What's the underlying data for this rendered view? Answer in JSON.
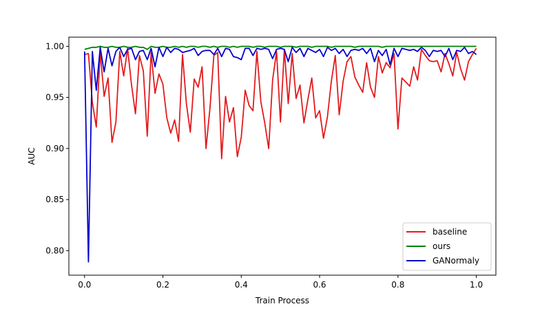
{
  "chart_data": {
    "type": "line",
    "title": "",
    "xlabel": "Train Process",
    "ylabel": "AUC",
    "xlim": [
      -0.04,
      1.05
    ],
    "ylim": [
      0.776,
      1.009
    ],
    "xticks": [
      0.0,
      0.2,
      0.4,
      0.6,
      0.8,
      1.0
    ],
    "xtick_labels": [
      "0.0",
      "0.2",
      "0.4",
      "0.6",
      "0.8",
      "1.0"
    ],
    "yticks": [
      0.8,
      0.85,
      0.9,
      0.95,
      1.0
    ],
    "ytick_labels": [
      "0.80",
      "0.85",
      "0.90",
      "0.95",
      "1.00"
    ],
    "grid": false,
    "legend_position": "lower-right",
    "series": [
      {
        "name": "baseline",
        "color": "#e31a1c",
        "x": [
          0.0,
          0.01,
          0.02,
          0.03,
          0.04,
          0.05,
          0.06,
          0.07,
          0.08,
          0.09,
          0.1,
          0.11,
          0.12,
          0.13,
          0.14,
          0.15,
          0.16,
          0.17,
          0.18,
          0.19,
          0.2,
          0.21,
          0.22,
          0.23,
          0.24,
          0.25,
          0.26,
          0.27,
          0.28,
          0.29,
          0.3,
          0.31,
          0.32,
          0.33,
          0.34,
          0.35,
          0.36,
          0.37,
          0.38,
          0.39,
          0.4,
          0.41,
          0.42,
          0.43,
          0.44,
          0.45,
          0.46,
          0.47,
          0.48,
          0.49,
          0.5,
          0.51,
          0.52,
          0.53,
          0.54,
          0.55,
          0.56,
          0.57,
          0.58,
          0.59,
          0.6,
          0.61,
          0.62,
          0.63,
          0.64,
          0.65,
          0.66,
          0.67,
          0.68,
          0.69,
          0.7,
          0.71,
          0.72,
          0.73,
          0.74,
          0.75,
          0.76,
          0.77,
          0.78,
          0.79,
          0.8,
          0.81,
          0.82,
          0.83,
          0.84,
          0.85,
          0.86,
          0.87,
          0.88,
          0.89,
          0.9,
          0.91,
          0.92,
          0.93,
          0.94,
          0.95,
          0.96,
          0.97,
          0.98,
          0.99,
          1.0
        ],
        "y": [
          0.992,
          0.993,
          0.945,
          0.921,
          0.994,
          0.951,
          0.969,
          0.906,
          0.926,
          0.995,
          0.971,
          0.998,
          0.962,
          0.934,
          0.991,
          0.976,
          0.912,
          0.994,
          0.954,
          0.973,
          0.963,
          0.93,
          0.915,
          0.928,
          0.907,
          0.992,
          0.944,
          0.916,
          0.968,
          0.96,
          0.98,
          0.9,
          0.939,
          0.991,
          0.994,
          0.89,
          0.951,
          0.926,
          0.94,
          0.892,
          0.911,
          0.957,
          0.942,
          0.937,
          0.995,
          0.946,
          0.925,
          0.9,
          0.967,
          0.995,
          0.926,
          0.997,
          0.944,
          0.993,
          0.949,
          0.962,
          0.925,
          0.948,
          0.969,
          0.93,
          0.937,
          0.91,
          0.931,
          0.966,
          0.991,
          0.933,
          0.966,
          0.985,
          0.99,
          0.97,
          0.962,
          0.955,
          0.984,
          0.96,
          0.95,
          0.99,
          0.974,
          0.984,
          0.979,
          0.993,
          0.919,
          0.969,
          0.965,
          0.961,
          0.98,
          0.967,
          0.997,
          0.991,
          0.986,
          0.985,
          0.986,
          0.975,
          0.993,
          0.983,
          0.971,
          0.994,
          0.978,
          0.967,
          0.985,
          0.992,
          0.998
        ]
      },
      {
        "name": "ours",
        "color": "#008000",
        "x": [
          0.0,
          0.01,
          0.02,
          0.03,
          0.04,
          0.05,
          0.06,
          0.07,
          0.08,
          0.09,
          0.1,
          0.11,
          0.12,
          0.13,
          0.14,
          0.15,
          0.16,
          0.17,
          0.18,
          0.19,
          0.2,
          0.21,
          0.22,
          0.23,
          0.24,
          0.25,
          0.26,
          0.27,
          0.28,
          0.29,
          0.3,
          0.31,
          0.32,
          0.33,
          0.34,
          0.35,
          0.36,
          0.37,
          0.38,
          0.39,
          0.4,
          0.41,
          0.42,
          0.43,
          0.44,
          0.45,
          0.46,
          0.47,
          0.48,
          0.49,
          0.5,
          0.51,
          0.52,
          0.53,
          0.54,
          0.55,
          0.56,
          0.57,
          0.58,
          0.59,
          0.6,
          0.61,
          0.62,
          0.63,
          0.64,
          0.65,
          0.66,
          0.67,
          0.68,
          0.69,
          0.7,
          0.71,
          0.72,
          0.73,
          0.74,
          0.75,
          0.76,
          0.77,
          0.78,
          0.79,
          0.8,
          0.81,
          0.82,
          0.83,
          0.84,
          0.85,
          0.86,
          0.87,
          0.88,
          0.89,
          0.9,
          0.91,
          0.92,
          0.93,
          0.94,
          0.95,
          0.96,
          0.97,
          0.98,
          0.99,
          1.0
        ],
        "y": [
          0.997,
          0.998,
          0.999,
          0.999,
          1.0,
          0.999,
          0.999,
          1.0,
          0.999,
          0.999,
          1.0,
          0.999,
          0.999,
          1.0,
          0.999,
          0.999,
          0.997,
          1.0,
          0.999,
          0.999,
          1.0,
          0.999,
          0.999,
          1.0,
          0.999,
          1.0,
          0.999,
          1.0,
          1.0,
          0.999,
          1.0,
          1.0,
          0.999,
          1.0,
          0.999,
          1.0,
          1.0,
          0.999,
          1.0,
          0.999,
          1.0,
          1.0,
          1.0,
          0.999,
          1.0,
          1.0,
          0.999,
          1.0,
          1.0,
          1.0,
          0.999,
          1.0,
          1.0,
          1.0,
          0.999,
          1.0,
          1.0,
          1.0,
          0.999,
          1.0,
          1.0,
          1.0,
          1.0,
          0.999,
          1.0,
          1.0,
          1.0,
          1.0,
          1.0,
          0.999,
          1.0,
          1.0,
          1.0,
          1.0,
          1.0,
          1.0,
          0.999,
          1.0,
          1.0,
          1.0,
          1.0,
          1.0,
          1.0,
          1.0,
          1.0,
          1.0,
          1.0,
          1.0,
          1.0,
          1.0,
          1.0,
          1.0,
          1.0,
          1.0,
          1.0,
          1.0,
          1.0,
          1.0,
          1.0,
          1.0,
          1.0
        ]
      },
      {
        "name": "GANormaly",
        "color": "#0000cd",
        "x": [
          0.0,
          0.01,
          0.02,
          0.03,
          0.04,
          0.05,
          0.06,
          0.07,
          0.08,
          0.09,
          0.1,
          0.11,
          0.12,
          0.13,
          0.14,
          0.15,
          0.16,
          0.17,
          0.18,
          0.19,
          0.2,
          0.21,
          0.22,
          0.23,
          0.24,
          0.25,
          0.26,
          0.27,
          0.28,
          0.29,
          0.3,
          0.31,
          0.32,
          0.33,
          0.34,
          0.35,
          0.36,
          0.37,
          0.38,
          0.39,
          0.4,
          0.41,
          0.42,
          0.43,
          0.44,
          0.45,
          0.46,
          0.47,
          0.48,
          0.49,
          0.5,
          0.51,
          0.52,
          0.53,
          0.54,
          0.55,
          0.56,
          0.57,
          0.58,
          0.59,
          0.6,
          0.61,
          0.62,
          0.63,
          0.64,
          0.65,
          0.66,
          0.67,
          0.68,
          0.69,
          0.7,
          0.71,
          0.72,
          0.73,
          0.74,
          0.75,
          0.76,
          0.77,
          0.78,
          0.79,
          0.8,
          0.81,
          0.82,
          0.83,
          0.84,
          0.85,
          0.86,
          0.87,
          0.88,
          0.89,
          0.9,
          0.91,
          0.92,
          0.93,
          0.94,
          0.95,
          0.96,
          0.97,
          0.98,
          0.99,
          1.0
        ],
        "y": [
          0.995,
          0.789,
          0.995,
          0.957,
          0.999,
          0.975,
          0.998,
          0.981,
          0.995,
          0.999,
          0.99,
          0.997,
          0.998,
          0.987,
          0.995,
          0.996,
          0.987,
          0.998,
          0.98,
          0.999,
          0.99,
          0.999,
          0.994,
          0.998,
          0.997,
          0.994,
          0.995,
          0.996,
          0.998,
          0.991,
          0.995,
          0.996,
          0.996,
          0.992,
          0.998,
          0.99,
          0.998,
          0.997,
          0.99,
          0.989,
          0.987,
          0.998,
          0.998,
          0.991,
          0.998,
          0.997,
          0.998,
          0.997,
          0.988,
          0.997,
          0.998,
          0.997,
          0.985,
          0.999,
          0.994,
          0.998,
          0.99,
          0.998,
          0.996,
          0.994,
          0.997,
          0.99,
          0.999,
          0.996,
          0.998,
          0.993,
          0.997,
          0.99,
          0.996,
          0.997,
          0.996,
          0.998,
          0.993,
          0.998,
          0.985,
          0.996,
          0.991,
          0.997,
          0.982,
          0.998,
          0.99,
          0.998,
          0.997,
          0.996,
          0.997,
          0.995,
          0.999,
          0.996,
          0.99,
          0.996,
          0.995,
          0.996,
          0.99,
          0.998,
          0.987,
          0.996,
          0.995,
          0.999,
          0.993,
          0.995,
          0.992
        ]
      }
    ]
  }
}
